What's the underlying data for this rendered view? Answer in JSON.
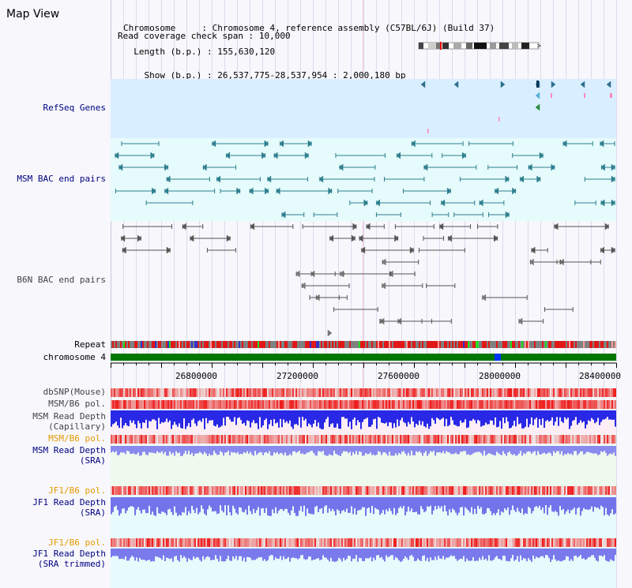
{
  "title": "Map View",
  "info": {
    "line1_key": "Chromosome",
    "line1_val": "Chromosome 4, reference assembly (C57BL/6J) (Build 37)",
    "line2_key": "Length (b.p.)",
    "line2_val": "155,630,120",
    "line3_key": "Show (b.p.)",
    "line3_val": "26,537,775-28,537,954 : 2,000,180 bp",
    "line4_key": "Read coverage check span",
    "line4_val": "10,000"
  },
  "tracks": {
    "refseq": "RefSeq Genes",
    "msm_bac": "MSM BAC end pairs",
    "b6n_bac": "B6N BAC end pairs",
    "repeat": "Repeat",
    "chromosome": "chromosome 4",
    "dbsnp": "dbSNP(Mouse)",
    "msm_b6_pol_1": "MSM/B6 pol.",
    "msm_read_depth_cap_1": "MSM Read Depth",
    "msm_read_depth_cap_2": "(Capillary)",
    "msm_b6_pol_2": "MSM/B6 pol.",
    "msm_read_depth_sra_1": "MSM Read Depth",
    "msm_read_depth_sra_2": "(SRA)",
    "jf1_b6_pol_1": "JF1/B6 pol.",
    "jf1_read_depth_sra_1": "JF1 Read Depth",
    "jf1_read_depth_sra_2": "(SRA)",
    "jf1_b6_pol_2": "JF1/B6 pol.",
    "jf1_read_depth_trim_1": "JF1 Read Depth",
    "jf1_read_depth_trim_2": "(SRA trimmed)"
  },
  "axis": {
    "ticks": [
      "26800000",
      "27200000",
      "27600000",
      "28000000",
      "28400000"
    ]
  },
  "colors": {
    "refseq_bg": "#d9efff",
    "bac_bg": "#e6fbfb",
    "msm_feature": "#2e7f8f",
    "b6n_feature": "#555555",
    "chromosome_bar": "#007700",
    "depth_blue": "#2233ee",
    "pol_red": "#ee2222"
  }
}
